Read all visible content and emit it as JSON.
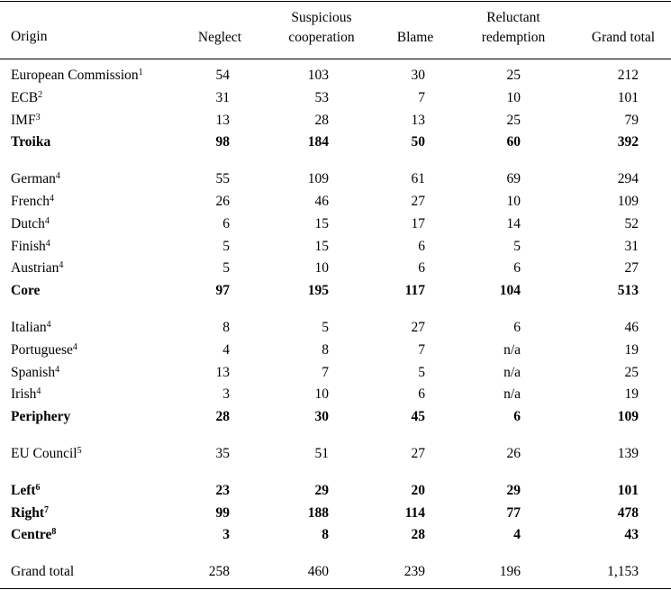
{
  "table": {
    "header": [
      "Origin",
      "Neglect",
      "Suspicious cooperation",
      "Blame",
      "Reluctant redemption",
      "Grand total"
    ],
    "groups": [
      {
        "rows": [
          {
            "label": "European Commission",
            "note": "1",
            "cells": [
              "54",
              "103",
              "30",
              "25",
              "212"
            ]
          },
          {
            "label": "ECB",
            "note": "2",
            "cells": [
              "31",
              "53",
              "7",
              "10",
              "101"
            ]
          },
          {
            "label": "IMF",
            "note": "3",
            "cells": [
              "13",
              "28",
              "13",
              "25",
              "79"
            ]
          },
          {
            "label": "Troika",
            "bold": true,
            "cells": [
              "98",
              "184",
              "50",
              "60",
              "392"
            ]
          }
        ]
      },
      {
        "rows": [
          {
            "label": "German",
            "note": "4",
            "cells": [
              "55",
              "109",
              "61",
              "69",
              "294"
            ]
          },
          {
            "label": "French",
            "note": "4",
            "cells": [
              "26",
              "46",
              "27",
              "10",
              "109"
            ]
          },
          {
            "label": "Dutch",
            "note": "4",
            "cells": [
              "6",
              "15",
              "17",
              "14",
              "52"
            ]
          },
          {
            "label": "Finish",
            "note": "4",
            "cells": [
              "5",
              "15",
              "6",
              "5",
              "31"
            ]
          },
          {
            "label": "Austrian",
            "note": "4",
            "cells": [
              "5",
              "10",
              "6",
              "6",
              "27"
            ]
          },
          {
            "label": "Core",
            "bold": true,
            "cells": [
              "97",
              "195",
              "117",
              "104",
              "513"
            ]
          }
        ]
      },
      {
        "rows": [
          {
            "label": "Italian",
            "note": "4",
            "cells": [
              "8",
              "5",
              "27",
              "6",
              "46"
            ]
          },
          {
            "label": "Portuguese",
            "note": "4",
            "cells": [
              "4",
              "8",
              "7",
              "n/a",
              "19"
            ]
          },
          {
            "label": "Spanish",
            "note": "4",
            "cells": [
              "13",
              "7",
              "5",
              "n/a",
              "25"
            ]
          },
          {
            "label": "Irish",
            "note": "4",
            "cells": [
              "3",
              "10",
              "6",
              "n/a",
              "19"
            ]
          },
          {
            "label": "Periphery",
            "bold": true,
            "cells": [
              "28",
              "30",
              "45",
              "6",
              "109"
            ]
          }
        ]
      },
      {
        "rows": [
          {
            "label": "EU Council",
            "note": "5",
            "cells": [
              "35",
              "51",
              "27",
              "26",
              "139"
            ]
          }
        ]
      },
      {
        "rows": [
          {
            "label": "Left",
            "note": "6",
            "bold": true,
            "cells": [
              "23",
              "29",
              "20",
              "29",
              "101"
            ]
          },
          {
            "label": "Right",
            "note": "7",
            "bold": true,
            "cells": [
              "99",
              "188",
              "114",
              "77",
              "478"
            ]
          },
          {
            "label": "Centre",
            "note": "8",
            "bold": true,
            "cells": [
              "3",
              "8",
              "28",
              "4",
              "43"
            ]
          }
        ]
      },
      {
        "rows": [
          {
            "label": "Grand total",
            "cells": [
              "258",
              "460",
              "239",
              "196",
              "1,153"
            ]
          }
        ]
      }
    ]
  }
}
